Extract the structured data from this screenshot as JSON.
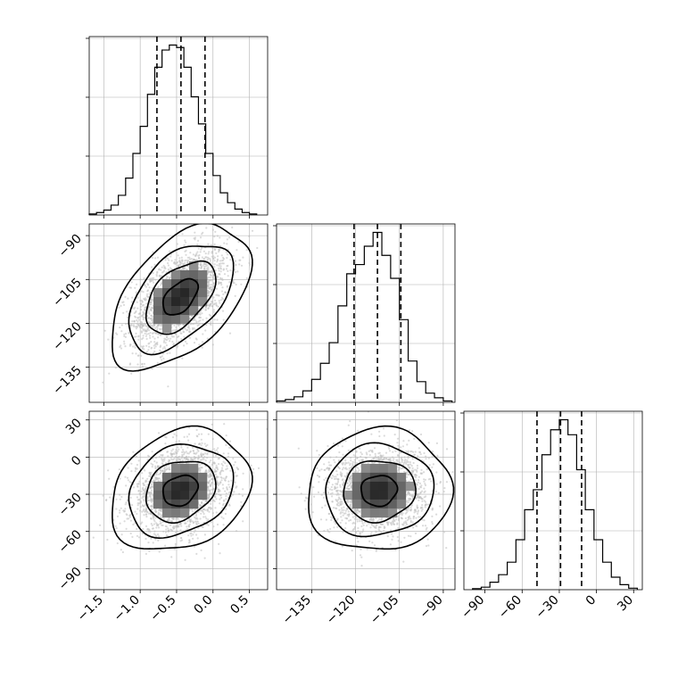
{
  "chart_data": {
    "type": "corner",
    "variables": [
      {
        "range": [
          -1.7,
          0.75
        ],
        "ticks": [
          -1.5,
          -1.0,
          -0.5,
          0.0,
          0.5
        ],
        "tick_labels": [
          "−1.5",
          "−1.0",
          "−0.5",
          "0.0",
          "0.5"
        ],
        "quantiles": [
          -0.77,
          -0.44,
          -0.11
        ],
        "histogram": {
          "edges": [
            -1.7,
            -1.6,
            -1.5,
            -1.4,
            -1.3,
            -1.2,
            -1.1,
            -1.0,
            -0.9,
            -0.8,
            -0.7,
            -0.6,
            -0.5,
            -0.4,
            -0.3,
            -0.2,
            -0.1,
            0.0,
            0.1,
            0.2,
            0.3,
            0.4,
            0.5,
            0.6
          ],
          "counts": [
            2,
            5,
            10,
            20,
            40,
            75,
            125,
            180,
            245,
            300,
            335,
            345,
            340,
            300,
            240,
            185,
            125,
            80,
            45,
            25,
            12,
            5,
            2
          ]
        }
      },
      {
        "range": [
          -147,
          -86
        ],
        "ticks": [
          -135,
          -120,
          -105,
          -90
        ],
        "tick_labels": [
          "−135",
          "−120",
          "−105",
          "−90"
        ],
        "quantiles": [
          -120.5,
          -112.5,
          -104.5
        ],
        "histogram": {
          "edges": [
            -147,
            -144,
            -141,
            -138,
            -135,
            -132,
            -129,
            -126,
            -123,
            -120,
            -117,
            -114,
            -111,
            -108,
            -105,
            -102,
            -99,
            -96,
            -93,
            -90,
            -87
          ],
          "counts": [
            3,
            6,
            12,
            25,
            50,
            85,
            130,
            210,
            280,
            300,
            340,
            370,
            320,
            270,
            180,
            90,
            45,
            20,
            10,
            3
          ]
        }
      },
      {
        "range": [
          -107,
          37
        ],
        "ticks": [
          -90,
          -60,
          -30,
          0,
          30
        ],
        "tick_labels": [
          "−90",
          "−60",
          "−30",
          "0",
          "30"
        ],
        "quantiles": [
          -48,
          -29,
          -12
        ],
        "histogram": {
          "edges": [
            -100,
            -93,
            -86,
            -79,
            -72,
            -65,
            -58,
            -51,
            -44,
            -37,
            -30,
            -23,
            -16,
            -9,
            -2,
            5,
            12,
            19,
            26,
            33
          ],
          "counts": [
            2,
            5,
            15,
            30,
            55,
            100,
            160,
            200,
            270,
            320,
            340,
            310,
            240,
            160,
            100,
            55,
            25,
            10,
            3
          ]
        }
      }
    ],
    "pairs": [
      {
        "x": 0,
        "y": 1,
        "mean": [
          -0.45,
          -111
        ],
        "sd": [
          0.33,
          8.5
        ],
        "corr": 0.5,
        "n": 2200
      },
      {
        "x": 0,
        "y": 2,
        "mean": [
          -0.45,
          -27
        ],
        "sd": [
          0.33,
          17
        ],
        "corr": 0.22,
        "n": 2200
      },
      {
        "x": 1,
        "y": 2,
        "mean": [
          -112,
          -27
        ],
        "sd": [
          8.5,
          17
        ],
        "corr": 0.05,
        "n": 2200
      }
    ],
    "contour_levels_sigma": [
      0.5,
      1.0,
      1.5,
      2.0
    ],
    "grid": true,
    "colors": {
      "line": "#000000",
      "points": "#bdbdbd",
      "grid": "#b0b0b0"
    }
  }
}
